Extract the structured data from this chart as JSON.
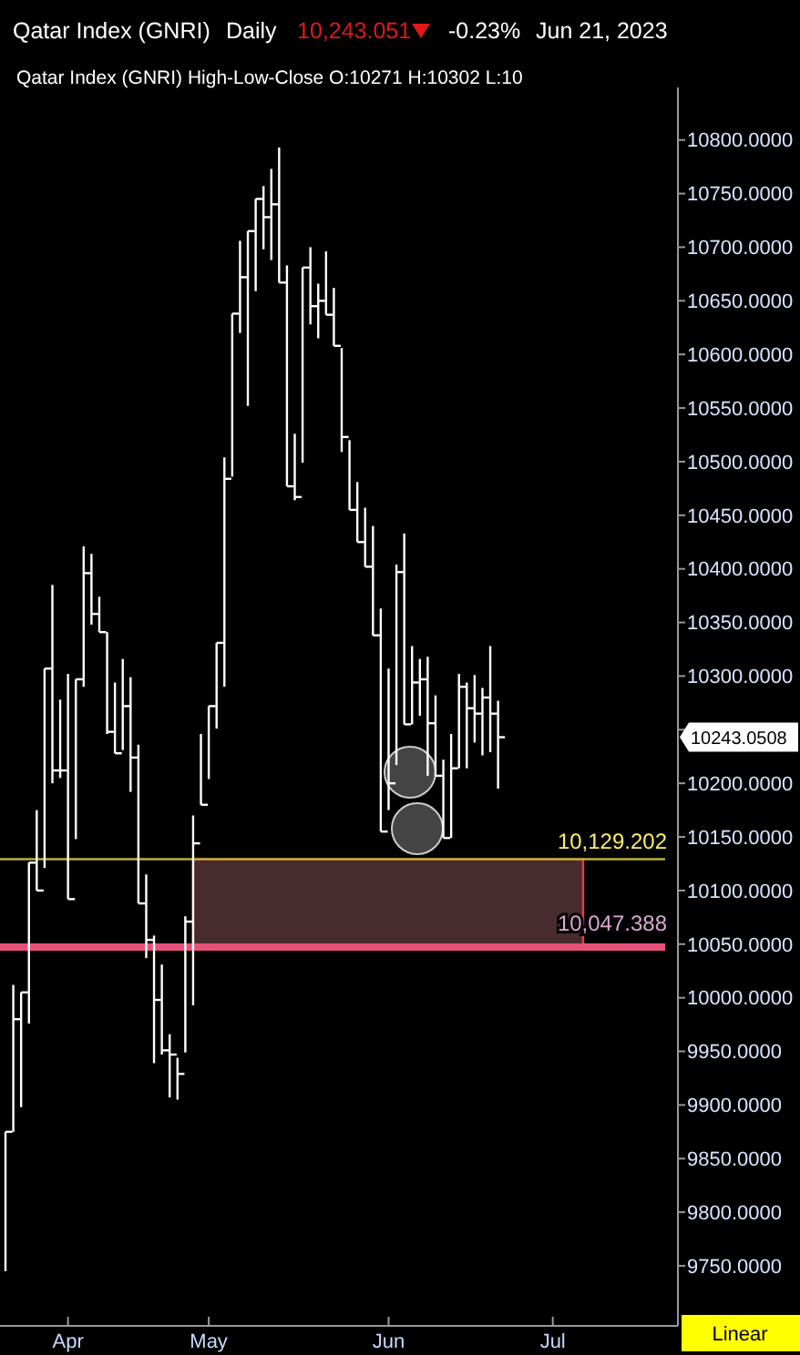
{
  "chart_data": {
    "type": "bar",
    "title": "Qatar Index  (GNRI)",
    "subtitle": "Qatar Index (GNRI) High-Low-Close O:10271 H:10302 L:10",
    "annotations": [
      "Daily",
      "10,243.051",
      "-0.23%",
      "Jun 21, 2023",
      "Linear",
      "10243.0508"
    ],
    "categories": [
      null,
      null,
      null,
      null,
      null,
      null,
      null,
      null,
      "Apr",
      null,
      null,
      null,
      null,
      null,
      null,
      null,
      null,
      null,
      null,
      null,
      null,
      null,
      null,
      null,
      null,
      null,
      "May",
      null,
      null,
      null,
      null,
      null,
      null,
      null,
      null,
      null,
      null,
      null,
      null,
      null,
      null,
      null,
      null,
      null,
      null,
      null,
      null,
      null,
      null,
      "Jun",
      null,
      null,
      null,
      null,
      null,
      null,
      null,
      null,
      null,
      null,
      null,
      null,
      null,
      null,
      null,
      null,
      null,
      null,
      null,
      null,
      "Jul",
      null,
      null,
      null,
      null,
      null,
      null,
      null,
      null,
      null,
      null,
      null,
      null,
      null,
      null,
      null,
      null
    ],
    "series": [
      {
        "color": "#ffffff",
        "base": [
          9745,
          9875,
          9898,
          9976,
          10100,
          10121,
          10200,
          10205,
          10092,
          10148,
          10290,
          10348,
          10341,
          10246,
          10228,
          10231,
          10192,
          10088,
          10037,
          9939,
          9947,
          9907,
          9905,
          9949,
          9993,
          10180,
          10204,
          10251,
          10290,
          10486,
          10620,
          10552,
          10659,
          10698,
          10688,
          10667,
          10477,
          10464,
          10499,
          10628,
          10615,
          10637,
          10608,
          10509,
          10455,
          10425,
          10402,
          10338,
          10155,
          10175,
          10217,
          10255,
          10255,
          10263,
          10207,
          10207,
          10149,
          10149,
          10214,
          10214,
          10238,
          10226,
          10229,
          10195,
          null,
          null,
          null,
          null,
          null,
          null,
          null,
          null,
          null,
          null,
          null,
          null,
          null,
          null,
          null,
          null,
          null,
          null,
          null,
          null,
          null,
          null,
          null
        ],
        "values": [
          130,
          137,
          107,
          150,
          75,
          186,
          185,
          73,
          210,
          149,
          131,
          66,
          33,
          95,
          66,
          85,
          107,
          148,
          78,
          119,
          84,
          59,
          39,
          127,
          177,
          66,
          68,
          80,
          214,
          152,
          86,
          163,
          86,
          59,
          85,
          126,
          206,
          62,
          182,
          72,
          51,
          59,
          54,
          97,
          65,
          56,
          55,
          102,
          208,
          132,
          187,
          178,
          73,
          53,
          111,
          75,
          73,
          97,
          88,
          80,
          63,
          63,
          99,
          82,
          null,
          null,
          null,
          null,
          null,
          null,
          null,
          null,
          null,
          null,
          null,
          null,
          null,
          null,
          null,
          null,
          null,
          null,
          null,
          null,
          null,
          null,
          null
        ]
      },
      {
        "type": "scatter",
        "color": "#ffffff",
        "values": [
          9875,
          9980,
          10005,
          10126,
          10100,
          10307,
          10212,
          10212,
          10092,
          10297,
          10396,
          10358,
          10341,
          10248,
          10228,
          10272,
          10224,
          10088,
          10054,
          9998,
          9951,
          9947,
          9929,
          10071,
          10144,
          10180,
          10272,
          10331,
          10484,
          10638,
          10672,
          10715,
          10745,
          10728,
          10740,
          10667,
          10477,
          10467,
          10681,
          10645,
          10650,
          10637,
          10608,
          10523,
          10455,
          10425,
          10402,
          10338,
          10155,
          10200,
          10397,
          10255,
          10294,
          10297,
          10256,
          10207,
          10149,
          10214,
          10290,
          10270,
          10265,
          10280,
          10265,
          10243,
          null,
          null,
          null,
          null,
          null,
          null,
          null,
          null,
          null,
          null,
          null,
          null,
          null,
          null,
          null,
          null,
          null,
          null,
          null,
          null,
          null,
          null,
          null
        ]
      }
    ],
    "ylim": [
      9694,
      10849
    ],
    "yticks": [
      {
        "value": 9750,
        "label": "9750.0000"
      },
      {
        "value": 9800,
        "label": "9800.0000"
      },
      {
        "value": 9850,
        "label": "9850.0000"
      },
      {
        "value": 9900,
        "label": "9900.0000"
      },
      {
        "value": 9950,
        "label": "9950.0000"
      },
      {
        "value": 10000,
        "label": "10000.0000"
      },
      {
        "value": 10050,
        "label": "10050.0000"
      },
      {
        "value": 10100,
        "label": "10100.0000"
      },
      {
        "value": 10150,
        "label": "10150.0000"
      },
      {
        "value": 10200,
        "label": "10200.0000"
      },
      {
        "value": 10250,
        "label": null
      },
      {
        "value": 10300,
        "label": "10300.0000"
      },
      {
        "value": 10350,
        "label": "10350.0000"
      },
      {
        "value": 10400,
        "label": "10400.0000"
      },
      {
        "value": 10450,
        "label": "10450.0000"
      },
      {
        "value": 10500,
        "label": "10500.0000"
      },
      {
        "value": 10550,
        "label": "10550.0000"
      },
      {
        "value": 10600,
        "label": "10600.0000"
      },
      {
        "value": 10650,
        "label": "10650.0000"
      },
      {
        "value": 10700,
        "label": "10700.0000"
      },
      {
        "value": 10750,
        "label": "10750.0000"
      },
      {
        "value": 10800,
        "label": "10800.0000"
      }
    ],
    "ref_lines": [
      {
        "axis": "y",
        "value": 10129.202,
        "label": "10,129.202",
        "color": "#b8b040"
      },
      {
        "axis": "y",
        "value": 10047.388,
        "label": "10,047.388",
        "color": "#e8507a"
      }
    ],
    "bands": [
      {
        "axis": "y",
        "from": 10047.388,
        "to": 10129.202,
        "color": "#472b2e"
      }
    ]
  }
}
